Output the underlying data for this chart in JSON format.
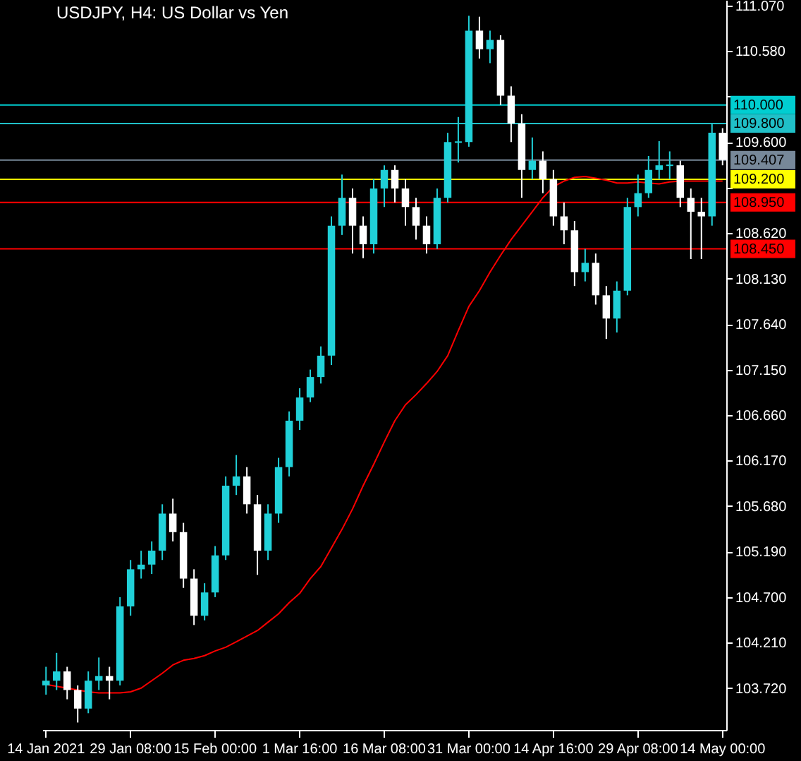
{
  "chart_data": {
    "type": "candlestick",
    "title": "USDJPY, H4:  US Dollar vs Yen",
    "categories": [
      "14 Jan 2021",
      null,
      null,
      null,
      null,
      null,
      null,
      null,
      "29 Jan 08:00",
      null,
      null,
      null,
      null,
      null,
      null,
      null,
      "15 Feb 00:00",
      null,
      null,
      null,
      null,
      null,
      null,
      null,
      "1 Mar 16:00",
      null,
      null,
      null,
      null,
      null,
      null,
      null,
      "16 Mar 08:00",
      null,
      null,
      null,
      null,
      null,
      null,
      null,
      "31 Mar 00:00",
      null,
      null,
      null,
      null,
      null,
      null,
      null,
      "14 Apr 16:00",
      null,
      null,
      null,
      null,
      null,
      null,
      null,
      "29 Apr 08:00",
      null,
      null,
      null,
      null,
      null,
      null,
      null,
      "14 May 00:00"
    ],
    "ohlc": [
      [
        103.75,
        103.95,
        103.65,
        103.8
      ],
      [
        103.8,
        104.1,
        103.7,
        103.9
      ],
      [
        103.9,
        103.95,
        103.6,
        103.7
      ],
      [
        103.7,
        103.75,
        103.35,
        103.5
      ],
      [
        103.5,
        103.9,
        103.45,
        103.8
      ],
      [
        103.8,
        104.05,
        103.7,
        103.85
      ],
      [
        103.85,
        103.95,
        103.6,
        103.8
      ],
      [
        103.8,
        104.7,
        103.75,
        104.6
      ],
      [
        104.6,
        105.1,
        104.5,
        105.0
      ],
      [
        105.0,
        105.2,
        104.9,
        105.05
      ],
      [
        105.05,
        105.3,
        104.95,
        105.2
      ],
      [
        105.2,
        105.7,
        105.1,
        105.6
      ],
      [
        105.6,
        105.76,
        105.3,
        105.4
      ],
      [
        105.4,
        105.5,
        104.8,
        104.9
      ],
      [
        104.9,
        105.0,
        104.4,
        104.5
      ],
      [
        104.5,
        104.85,
        104.45,
        104.75
      ],
      [
        104.75,
        105.25,
        104.7,
        105.15
      ],
      [
        105.15,
        106.0,
        105.1,
        105.9
      ],
      [
        105.9,
        106.23,
        105.8,
        106.0
      ],
      [
        106.0,
        106.1,
        105.6,
        105.7
      ],
      [
        105.7,
        105.8,
        104.94,
        105.2
      ],
      [
        105.2,
        105.7,
        105.1,
        105.6
      ],
      [
        105.6,
        106.2,
        105.5,
        106.1
      ],
      [
        106.1,
        106.7,
        106.0,
        106.6
      ],
      [
        106.6,
        106.95,
        106.5,
        106.85
      ],
      [
        106.85,
        107.15,
        106.8,
        107.07
      ],
      [
        107.07,
        107.4,
        107.0,
        107.3
      ],
      [
        107.3,
        108.8,
        107.2,
        108.7
      ],
      [
        108.7,
        109.25,
        108.6,
        109.0
      ],
      [
        109.0,
        109.1,
        108.4,
        108.7
      ],
      [
        108.7,
        108.8,
        108.35,
        108.5
      ],
      [
        108.5,
        109.2,
        108.4,
        109.1
      ],
      [
        109.1,
        109.35,
        108.9,
        109.3
      ],
      [
        109.3,
        109.35,
        108.95,
        109.1
      ],
      [
        109.1,
        109.2,
        108.7,
        108.9
      ],
      [
        108.9,
        109.0,
        108.55,
        108.7
      ],
      [
        108.7,
        108.8,
        108.4,
        108.5
      ],
      [
        108.5,
        109.1,
        108.45,
        109.0
      ],
      [
        109.0,
        109.7,
        108.95,
        109.6
      ],
      [
        109.6,
        109.87,
        109.38,
        109.6
      ],
      [
        109.6,
        110.96,
        109.55,
        110.8
      ],
      [
        110.8,
        110.95,
        110.5,
        110.6
      ],
      [
        110.6,
        110.8,
        110.45,
        110.7
      ],
      [
        110.7,
        110.75,
        110.0,
        110.1
      ],
      [
        110.1,
        110.2,
        109.6,
        109.8
      ],
      [
        109.8,
        109.9,
        109.0,
        109.3
      ],
      [
        109.3,
        109.65,
        109.2,
        109.4
      ],
      [
        109.4,
        109.5,
        109.05,
        109.2
      ],
      [
        109.2,
        109.3,
        108.7,
        108.8
      ],
      [
        108.8,
        108.95,
        108.5,
        108.65
      ],
      [
        108.65,
        108.75,
        108.05,
        108.2
      ],
      [
        108.2,
        108.45,
        108.1,
        108.3
      ],
      [
        108.3,
        108.4,
        107.85,
        107.95
      ],
      [
        107.95,
        108.05,
        107.48,
        107.7
      ],
      [
        107.7,
        108.1,
        107.55,
        108.0
      ],
      [
        108.0,
        109.0,
        107.95,
        108.9
      ],
      [
        108.9,
        109.25,
        108.8,
        109.05
      ],
      [
        109.05,
        109.45,
        109.0,
        109.3
      ],
      [
        109.3,
        109.61,
        109.2,
        109.35
      ],
      [
        109.35,
        109.5,
        109.2,
        109.35
      ],
      [
        109.35,
        109.4,
        108.9,
        109.0
      ],
      [
        109.0,
        109.1,
        108.34,
        108.85
      ],
      [
        108.85,
        109.0,
        108.34,
        108.8
      ],
      [
        108.8,
        109.8,
        108.7,
        109.7
      ],
      [
        109.7,
        109.75,
        109.35,
        109.407
      ]
    ],
    "colors": [
      "#20d0d8",
      "#20d0d8",
      "#ffffff",
      "#ffffff",
      "#20d0d8",
      "#20d0d8",
      "#ffffff",
      "#20d0d8",
      "#20d0d8",
      "#20d0d8",
      "#20d0d8",
      "#20d0d8",
      "#ffffff",
      "#ffffff",
      "#ffffff",
      "#20d0d8",
      "#20d0d8",
      "#20d0d8",
      "#20d0d8",
      "#ffffff",
      "#ffffff",
      "#20d0d8",
      "#20d0d8",
      "#20d0d8",
      "#20d0d8",
      "#20d0d8",
      "#20d0d8",
      "#20d0d8",
      "#20d0d8",
      "#ffffff",
      "#ffffff",
      "#20d0d8",
      "#20d0d8",
      "#ffffff",
      "#ffffff",
      "#ffffff",
      "#ffffff",
      "#20d0d8",
      "#20d0d8",
      "#20d0d8",
      "#20d0d8",
      "#ffffff",
      "#20d0d8",
      "#ffffff",
      "#ffffff",
      "#ffffff",
      "#20d0d8",
      "#ffffff",
      "#ffffff",
      "#ffffff",
      "#ffffff",
      "#20d0d8",
      "#ffffff",
      "#ffffff",
      "#20d0d8",
      "#20d0d8",
      "#20d0d8",
      "#20d0d8",
      "#20d0d8",
      "#20d0d8",
      "#ffffff",
      "#ffffff",
      "#ffffff",
      "#20d0d8",
      "#ffffff"
    ],
    "series": [
      {
        "type": "line",
        "color": "#ff0000",
        "values": [
          103.76,
          103.74,
          103.72,
          103.7,
          103.68,
          103.67,
          103.67,
          103.67,
          103.68,
          103.72,
          103.8,
          103.88,
          103.97,
          104.02,
          104.04,
          104.07,
          104.12,
          104.16,
          104.22,
          104.28,
          104.34,
          104.43,
          104.52,
          104.64,
          104.74,
          104.9,
          105.03,
          105.23,
          105.43,
          105.65,
          105.9,
          106.13,
          106.37,
          106.6,
          106.77,
          106.88,
          107.0,
          107.13,
          107.3,
          107.57,
          107.83,
          108.0,
          108.2,
          108.38,
          108.55,
          108.7,
          108.85,
          109.0,
          109.12,
          109.18,
          109.22,
          109.23,
          109.21,
          109.19,
          109.16,
          109.16,
          109.17,
          109.16,
          109.15,
          109.17,
          109.18,
          109.18,
          109.18,
          109.18,
          109.18
        ]
      }
    ],
    "ylim": [
      103.27,
      111.13
    ],
    "yticks": [
      {
        "value": 111.07,
        "label": "111.070"
      },
      {
        "value": 110.58,
        "label": "110.580"
      },
      {
        "value": 110.09,
        "label": null
      },
      {
        "value": 109.6,
        "label": "109.600"
      },
      {
        "value": 109.11,
        "label": null
      },
      {
        "value": 108.62,
        "label": "108.620"
      },
      {
        "value": 108.13,
        "label": "108.130"
      },
      {
        "value": 107.64,
        "label": "107.640"
      },
      {
        "value": 107.15,
        "label": "107.150"
      },
      {
        "value": 106.66,
        "label": "106.660"
      },
      {
        "value": 106.17,
        "label": "106.170"
      },
      {
        "value": 105.68,
        "label": "105.680"
      },
      {
        "value": 105.19,
        "label": "105.190"
      },
      {
        "value": 104.7,
        "label": "104.700"
      },
      {
        "value": 104.21,
        "label": "104.210"
      },
      {
        "value": 103.72,
        "label": "103.720"
      }
    ],
    "ref_lines": [
      {
        "axis": "y",
        "value": 110.0,
        "label": "110.000",
        "color": "#00ced1"
      },
      {
        "axis": "y",
        "value": 109.8,
        "label": "109.800",
        "color": "#20c0c8"
      },
      {
        "axis": "y",
        "value": 109.407,
        "label": "109.407",
        "color": "#778899"
      },
      {
        "axis": "y",
        "value": 109.2,
        "label": "109.200",
        "color": "#ffff00"
      },
      {
        "axis": "y",
        "value": 108.95,
        "label": "108.950",
        "color": "#ff0000"
      },
      {
        "axis": "y",
        "value": 108.45,
        "label": "108.450",
        "color": "#ff0000"
      }
    ]
  }
}
